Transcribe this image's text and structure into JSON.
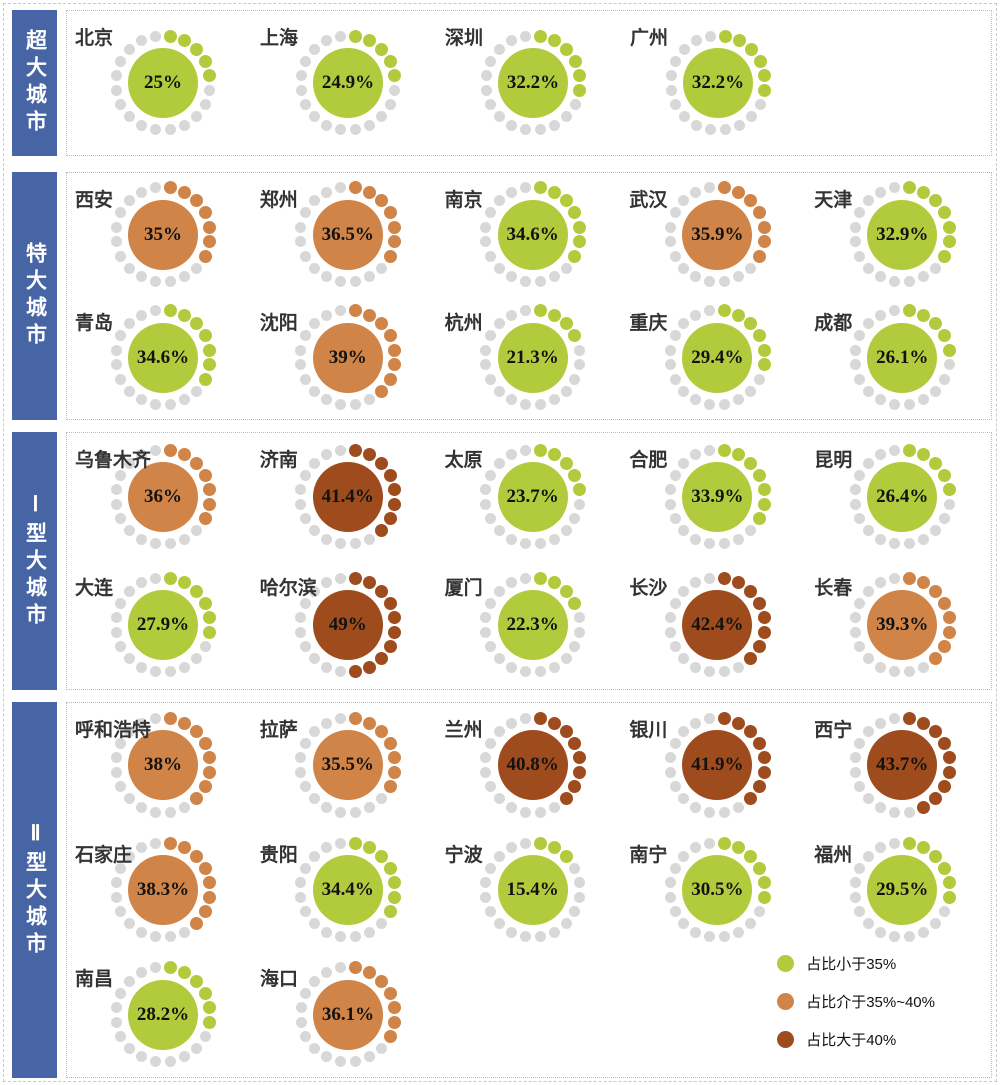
{
  "chart_data": {
    "type": "donut-dot-grid",
    "unit": "%",
    "dots_per_ring": 20,
    "dot_unit_percent": 5,
    "groups": [
      {
        "label": "超大城市",
        "cities": [
          {
            "name": "北京",
            "value": 25,
            "display": "25%"
          },
          {
            "name": "上海",
            "value": 24.9,
            "display": "24.9%"
          },
          {
            "name": "深圳",
            "value": 32.2,
            "display": "32.2%"
          },
          {
            "name": "广州",
            "value": 32.2,
            "display": "32.2%"
          }
        ]
      },
      {
        "label": "特大城市",
        "cities": [
          {
            "name": "西安",
            "value": 35,
            "display": "35%"
          },
          {
            "name": "郑州",
            "value": 36.5,
            "display": "36.5%"
          },
          {
            "name": "南京",
            "value": 34.6,
            "display": "34.6%"
          },
          {
            "name": "武汉",
            "value": 35.9,
            "display": "35.9%"
          },
          {
            "name": "天津",
            "value": 32.9,
            "display": "32.9%"
          },
          {
            "name": "青岛",
            "value": 34.6,
            "display": "34.6%"
          },
          {
            "name": "沈阳",
            "value": 39,
            "display": "39%"
          },
          {
            "name": "杭州",
            "value": 21.3,
            "display": "21.3%"
          },
          {
            "name": "重庆",
            "value": 29.4,
            "display": "29.4%"
          },
          {
            "name": "成都",
            "value": 26.1,
            "display": "26.1%"
          }
        ]
      },
      {
        "label": "Ⅰ型大城市",
        "cities": [
          {
            "name": "乌鲁木齐",
            "value": 36,
            "display": "36%"
          },
          {
            "name": "济南",
            "value": 41.4,
            "display": "41.4%"
          },
          {
            "name": "太原",
            "value": 23.7,
            "display": "23.7%"
          },
          {
            "name": "合肥",
            "value": 33.9,
            "display": "33.9%"
          },
          {
            "name": "昆明",
            "value": 26.4,
            "display": "26.4%"
          },
          {
            "name": "大连",
            "value": 27.9,
            "display": "27.9%"
          },
          {
            "name": "哈尔滨",
            "value": 49,
            "display": "49%"
          },
          {
            "name": "厦门",
            "value": 22.3,
            "display": "22.3%"
          },
          {
            "name": "长沙",
            "value": 42.4,
            "display": "42.4%"
          },
          {
            "name": "长春",
            "value": 39.3,
            "display": "39.3%"
          }
        ]
      },
      {
        "label": "Ⅱ型大城市",
        "cities": [
          {
            "name": "呼和浩特",
            "value": 38,
            "display": "38%"
          },
          {
            "name": "拉萨",
            "value": 35.5,
            "display": "35.5%"
          },
          {
            "name": "兰州",
            "value": 40.8,
            "display": "40.8%"
          },
          {
            "name": "银川",
            "value": 41.9,
            "display": "41.9%"
          },
          {
            "name": "西宁",
            "value": 43.7,
            "display": "43.7%"
          },
          {
            "name": "石家庄",
            "value": 38.3,
            "display": "38.3%"
          },
          {
            "name": "贵阳",
            "value": 34.4,
            "display": "34.4%"
          },
          {
            "name": "宁波",
            "value": 15.4,
            "display": "15.4%"
          },
          {
            "name": "南宁",
            "value": 30.5,
            "display": "30.5%"
          },
          {
            "name": "福州",
            "value": 29.5,
            "display": "29.5%"
          },
          {
            "name": "南昌",
            "value": 28.2,
            "display": "28.2%"
          },
          {
            "name": "海口",
            "value": 36.1,
            "display": "36.1%"
          }
        ]
      }
    ],
    "legend": [
      {
        "label": "占比小于35%",
        "color": "#b2cb3c"
      },
      {
        "label": "占比介于35%~40%",
        "color": "#d08447"
      },
      {
        "label": "占比大于40%",
        "color": "#9e4c1d"
      }
    ],
    "value_bands": {
      "lt35": "green",
      "from35to40": "orange",
      "gt40": "brown"
    }
  },
  "colors": {
    "inactive_dot": "#d8d8d8",
    "sidebar_blue": "#4765a4",
    "box_border": "#9dc3e6",
    "outer_border": "#c9c9c9",
    "city_label_text": "#333333",
    "percent_text": "#121212"
  }
}
